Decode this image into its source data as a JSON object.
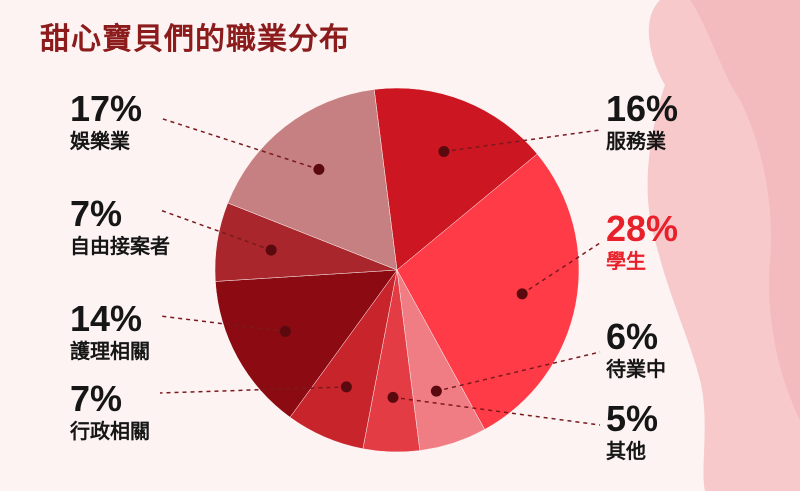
{
  "chart_data": {
    "type": "pie",
    "title": "甜心寶貝們的職業分布",
    "slices": [
      {
        "label": "服務業",
        "pct_text": "16%",
        "value": 16,
        "color": "#cc1622"
      },
      {
        "label": "學生",
        "pct_text": "28%",
        "value": 28,
        "color": "#ff3b47",
        "highlight": true
      },
      {
        "label": "待業中",
        "pct_text": "6%",
        "value": 6,
        "color": "#f07d83"
      },
      {
        "label": "其他",
        "pct_text": "5%",
        "value": 5,
        "color": "#e33c44"
      },
      {
        "label": "行政相關",
        "pct_text": "7%",
        "value": 7,
        "color": "#c8242c"
      },
      {
        "label": "護理相關",
        "pct_text": "14%",
        "value": 14,
        "color": "#8c0a12"
      },
      {
        "label": "自由接案者",
        "pct_text": "7%",
        "value": 7,
        "color": "#a8262c"
      },
      {
        "label": "娛樂業",
        "pct_text": "17%",
        "value": 17,
        "color": "#c68082"
      }
    ],
    "colors": {
      "background": "#fdf3f3",
      "title": "#8c1c1c",
      "highlight": "#e8202a",
      "silhouette": "#f6c4c6"
    }
  }
}
